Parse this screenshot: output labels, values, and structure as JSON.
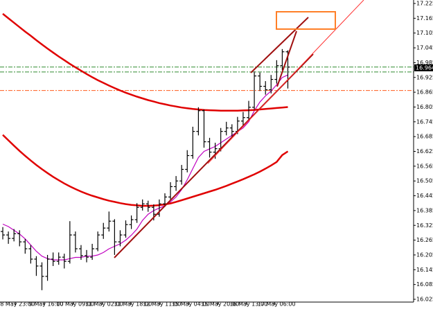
{
  "chart_data": {
    "type": "candlestick",
    "xlim": [
      -0.5,
      73.5
    ],
    "ylim": [
      16.025,
      17.225
    ],
    "yticks": [
      17.225,
      17.165,
      17.105,
      17.045,
      16.985,
      16.925,
      16.865,
      16.805,
      16.745,
      16.685,
      16.625,
      16.565,
      16.505,
      16.445,
      16.385,
      16.325,
      16.265,
      16.205,
      16.145,
      16.085,
      16.025
    ],
    "xticks": [
      {
        "value": 2.25,
        "label": "8 May 23:00"
      },
      {
        "value": 7.4,
        "label": "9 May 16:00"
      },
      {
        "value": 12.6,
        "label": "10 May 09:00"
      },
      {
        "value": 17.75,
        "label": "11 May 02:00"
      },
      {
        "value": 22.9,
        "label": "11 May 18:00"
      },
      {
        "value": 28.1,
        "label": "12 May 11:00"
      },
      {
        "value": 33.25,
        "label": "15 May 04:00"
      },
      {
        "value": 38.5,
        "label": "15 May 20:00"
      },
      {
        "value": 43.6,
        "label": "16 May 13:00"
      },
      {
        "value": 48.6,
        "label": "17 May 06:00"
      }
    ],
    "color": "#000000",
    "open": [
      16.3,
      16.286,
      16.272,
      16.291,
      16.258,
      16.23,
      16.188,
      16.16,
      16.118,
      16.188,
      16.179,
      16.196,
      16.179,
      16.286,
      16.23,
      16.202,
      16.196,
      16.23,
      16.286,
      16.314,
      16.342,
      16.258,
      16.286,
      16.328,
      16.348,
      16.398,
      16.412,
      16.398,
      16.37,
      16.412,
      16.44,
      16.482,
      16.505,
      16.552,
      16.608,
      16.706,
      16.79,
      16.664,
      16.622,
      16.636,
      16.706,
      16.72,
      16.706,
      16.748,
      16.762,
      16.804,
      16.931,
      16.889,
      16.875,
      16.917,
      16.973,
      17.029
    ],
    "high": [
      16.318,
      16.3,
      16.31,
      16.305,
      16.27,
      16.245,
      16.2,
      16.175,
      16.205,
      16.215,
      16.215,
      16.21,
      16.342,
      16.3,
      16.245,
      16.225,
      16.25,
      16.3,
      16.335,
      16.381,
      16.35,
      16.305,
      16.345,
      16.365,
      16.415,
      16.43,
      16.425,
      16.41,
      16.43,
      16.455,
      16.5,
      16.525,
      16.57,
      16.63,
      16.725,
      16.804,
      16.795,
      16.68,
      16.66,
      16.72,
      16.745,
      16.735,
      16.765,
      16.785,
      16.83,
      16.95,
      16.945,
      16.91,
      16.935,
      16.995,
      17.04,
      17.035
    ],
    "low": [
      16.268,
      16.25,
      16.26,
      16.24,
      16.21,
      16.17,
      16.12,
      16.062,
      16.1,
      16.16,
      16.165,
      16.15,
      16.17,
      16.215,
      16.185,
      16.175,
      16.185,
      16.22,
      16.27,
      16.3,
      16.205,
      16.24,
      16.275,
      16.31,
      16.335,
      16.385,
      16.38,
      16.345,
      16.36,
      16.4,
      16.43,
      16.465,
      16.49,
      16.54,
      16.595,
      16.69,
      16.64,
      16.6,
      16.595,
      16.625,
      16.69,
      16.685,
      16.695,
      16.73,
      16.75,
      16.795,
      16.87,
      16.855,
      16.86,
      16.9,
      16.955,
      16.88
    ],
    "close": [
      16.286,
      16.272,
      16.291,
      16.258,
      16.23,
      16.188,
      16.16,
      16.118,
      16.188,
      16.179,
      16.196,
      16.179,
      16.286,
      16.23,
      16.202,
      16.196,
      16.23,
      16.286,
      16.314,
      16.342,
      16.258,
      16.286,
      16.328,
      16.348,
      16.398,
      16.412,
      16.398,
      16.37,
      16.412,
      16.44,
      16.482,
      16.505,
      16.552,
      16.608,
      16.706,
      16.79,
      16.664,
      16.622,
      16.636,
      16.706,
      16.72,
      16.706,
      16.748,
      16.762,
      16.804,
      16.931,
      16.889,
      16.875,
      16.917,
      16.973,
      17.029,
      16.967
    ],
    "overlays": [
      {
        "color": "#c000c0",
        "width": 1.2,
        "values": [
          16.33,
          16.32,
          16.305,
          16.29,
          16.27,
          16.245,
          16.22,
          16.2,
          16.19,
          16.185,
          16.185,
          16.185,
          16.19,
          16.195,
          16.195,
          16.2,
          16.2,
          16.205,
          16.215,
          16.23,
          16.24,
          16.25,
          16.265,
          16.285,
          16.31,
          16.345,
          16.37,
          16.385,
          16.395,
          16.405,
          16.42,
          16.44,
          16.47,
          16.51,
          16.555,
          16.6,
          16.625,
          16.635,
          16.645,
          16.66,
          16.675,
          16.69,
          16.705,
          16.72,
          16.745,
          16.79,
          16.825,
          16.85,
          16.87,
          16.895,
          16.925,
          16.935
        ]
      },
      {
        "color": "#e00000",
        "width": 2.5,
        "values": [
          17.183,
          17.165,
          17.147,
          17.129,
          17.111,
          17.094,
          17.076,
          17.059,
          17.042,
          17.026,
          17.01,
          16.995,
          16.98,
          16.966,
          16.952,
          16.939,
          16.926,
          16.914,
          16.903,
          16.892,
          16.882,
          16.872,
          16.863,
          16.855,
          16.847,
          16.84,
          16.833,
          16.827,
          16.821,
          16.816,
          16.811,
          16.807,
          16.803,
          16.8,
          16.797,
          16.795,
          16.793,
          16.792,
          16.791,
          16.79,
          16.79,
          16.79,
          16.79,
          16.791,
          16.792,
          16.793,
          16.795,
          16.797,
          16.799,
          16.801,
          16.803,
          16.805
        ]
      },
      {
        "color": "#e00000",
        "width": 2.5,
        "values": [
          16.692,
          16.67,
          16.648,
          16.627,
          16.607,
          16.588,
          16.57,
          16.553,
          16.537,
          16.522,
          16.508,
          16.495,
          16.483,
          16.472,
          16.462,
          16.453,
          16.445,
          16.438,
          16.431,
          16.425,
          16.42,
          16.415,
          16.411,
          16.408,
          16.406,
          16.404,
          16.404,
          16.405,
          16.407,
          16.41,
          16.414,
          16.42,
          16.427,
          16.434,
          16.441,
          16.448,
          16.455,
          16.462,
          16.469,
          16.477,
          16.485,
          16.494,
          16.503,
          16.512,
          16.522,
          16.532,
          16.543,
          16.555,
          16.568,
          16.582,
          16.61,
          16.625
        ]
      }
    ],
    "levels": [
      {
        "value": 16.967,
        "color": "#2e8b2e"
      },
      {
        "value": 16.947,
        "color": "#2e8b2e"
      },
      {
        "value": 16.872,
        "color": "#ff5a1a"
      }
    ],
    "price_label": 16.964
  }
}
